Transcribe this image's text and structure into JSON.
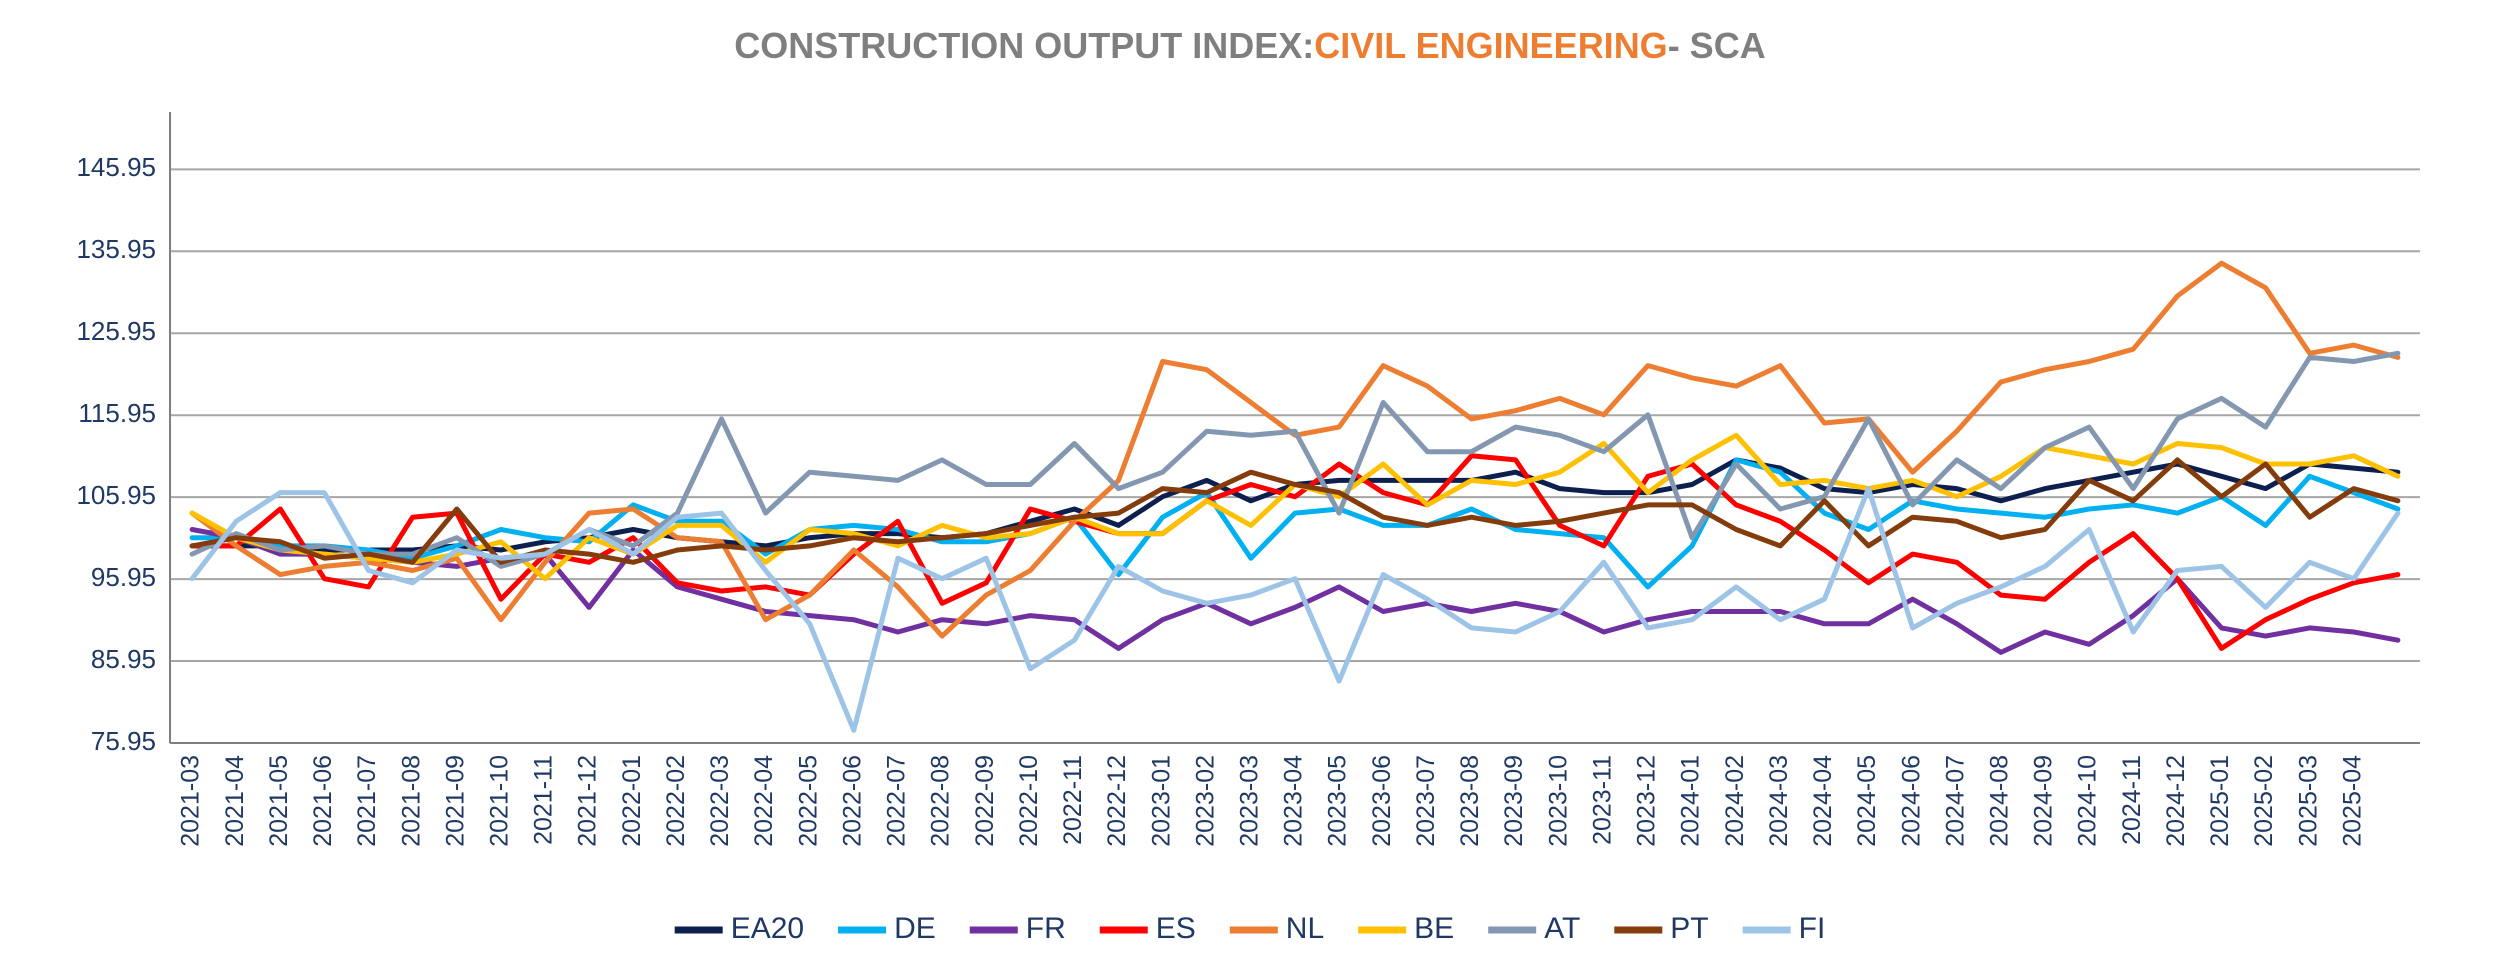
{
  "chart_data": {
    "type": "line",
    "title": [
      "CONSTRUCTION OUTPUT INDEX:",
      "CIVIL ENGINEERING",
      "- SCA"
    ],
    "title_colors": [
      "#7f7f7f",
      "#ed7d31",
      "#7f7f7f"
    ],
    "categories": [
      "2021-03",
      "2021-04",
      "2021-05",
      "2021-06",
      "2021-07",
      "2021-08",
      "2021-09",
      "2021-10",
      "2021-11",
      "2021-12",
      "2022-01",
      "2022-02",
      "2022-03",
      "2022-04",
      "2022-05",
      "2022-06",
      "2022-07",
      "2022-08",
      "2022-09",
      "2022-10",
      "2022-11",
      "2022-12",
      "2023-01",
      "2023-02",
      "2023-03",
      "2023-04",
      "2023-05",
      "2023-06",
      "2023-07",
      "2023-08",
      "2023-09",
      "2023-10",
      "2023-11",
      "2023-12",
      "2024-01",
      "2024-02",
      "2024-03",
      "2024-04",
      "2024-05",
      "2024-06",
      "2024-07",
      "2024-08",
      "2024-09",
      "2024-10",
      "2024-11",
      "2024-12",
      "2025-01",
      "2025-02",
      "2025-03",
      "2025-04",
      null
    ],
    "ylim": [
      75.95,
      152.95
    ],
    "yticks": [
      75.95,
      85.95,
      95.95,
      105.95,
      115.95,
      125.95,
      135.95,
      145.95
    ],
    "grid": true,
    "legend": "bottom",
    "series": [
      {
        "name": "EA20",
        "color": "#0d1f4f",
        "values": [
          100,
          100,
          100,
          99.5,
          99.5,
          99.5,
          100,
          99.5,
          100.5,
          101,
          102,
          101,
          100.5,
          100,
          101,
          101.5,
          101.5,
          101,
          101.5,
          103,
          104.5,
          102.5,
          106,
          108,
          105.5,
          107.5,
          108,
          108,
          108,
          108,
          109,
          107,
          106.5,
          106.5,
          107.5,
          110.5,
          109.5,
          107,
          106.5,
          107.5,
          107,
          105.5,
          107,
          108,
          109,
          110,
          108.5,
          107,
          110,
          109.5,
          109
        ]
      },
      {
        "name": "DE",
        "color": "#00b0f0",
        "values": [
          101,
          101,
          100,
          100,
          99.5,
          98.5,
          100,
          102,
          101,
          100.5,
          105,
          103,
          103,
          99,
          102,
          102.5,
          102,
          100.5,
          100.5,
          101.5,
          103.5,
          96.5,
          103.5,
          106.5,
          98.5,
          104,
          104.5,
          102.5,
          102.5,
          104.5,
          102,
          101.5,
          101,
          95,
          100,
          110.5,
          109,
          104,
          102,
          105.5,
          104.5,
          104,
          103.5,
          104.5,
          105,
          104,
          106,
          102.5,
          108.5,
          106.5,
          104.5
        ]
      },
      {
        "name": "FR",
        "color": "#7030a0",
        "values": [
          102,
          101,
          99,
          99,
          98.5,
          98,
          97.5,
          98.5,
          99,
          92.5,
          99.5,
          95,
          93.5,
          92,
          91.5,
          91,
          89.5,
          91,
          90.5,
          91.5,
          91,
          87.5,
          91,
          93,
          90.5,
          92.5,
          95,
          92,
          93,
          92,
          93,
          92,
          89.5,
          91,
          92,
          92,
          92,
          90.5,
          90.5,
          93.5,
          90.5,
          87,
          89.5,
          88,
          91.5,
          96,
          90,
          89,
          90,
          89.5,
          88.5
        ]
      },
      {
        "name": "ES",
        "color": "#ff0000",
        "values": [
          100,
          100,
          104.5,
          96,
          95,
          103.5,
          104,
          93.5,
          99,
          98,
          101,
          95.5,
          94.5,
          95,
          94,
          99,
          103,
          93,
          95.5,
          104.5,
          103,
          101.5,
          101.5,
          105.5,
          107.5,
          106,
          110,
          106.5,
          105,
          111,
          110.5,
          102.5,
          100,
          108.5,
          110,
          105,
          103,
          99.5,
          95.5,
          99,
          98,
          94,
          93.5,
          98,
          101.5,
          96,
          87.5,
          91,
          93.5,
          95.5,
          96.5
        ]
      },
      {
        "name": "NL",
        "color": "#ed7d31",
        "values": [
          104,
          100,
          96.5,
          97.5,
          98,
          97,
          98.5,
          91,
          98,
          104,
          104.5,
          101,
          100.5,
          91,
          94,
          99.5,
          95,
          89,
          94,
          97,
          103,
          108,
          122.5,
          121.5,
          117.5,
          113.5,
          114.5,
          122,
          119.5,
          115.5,
          116.5,
          118,
          116,
          122,
          120.5,
          119.5,
          122,
          115,
          115.5,
          109,
          114,
          120,
          121.5,
          122.5,
          124,
          130.5,
          134.5,
          131.5,
          123.5,
          124.5,
          123
        ]
      },
      {
        "name": "BE",
        "color": "#ffc000",
        "values": [
          104,
          101,
          99.5,
          99,
          98.5,
          98,
          99,
          100.5,
          96,
          101,
          99,
          102.5,
          102.5,
          98,
          102,
          101.5,
          100,
          102.5,
          101,
          101.5,
          103.5,
          101.5,
          101.5,
          105.5,
          102.5,
          107.5,
          106,
          110,
          105,
          108,
          107.5,
          109,
          112.5,
          106.5,
          110.5,
          113.5,
          107.5,
          108,
          107,
          108,
          106,
          108.5,
          112,
          111,
          110,
          112.5,
          112,
          110,
          110,
          111,
          108.5
        ]
      },
      {
        "name": "AT",
        "color": "#8497b0",
        "values": [
          99,
          101.5,
          99.5,
          100,
          99,
          99,
          101,
          97.5,
          99,
          102,
          100,
          104,
          115.5,
          104,
          109,
          108.5,
          108,
          110.5,
          107.5,
          107.5,
          112.5,
          107,
          109,
          114,
          113.5,
          114,
          104,
          117.5,
          111.5,
          111.5,
          114.5,
          113.5,
          111.5,
          116,
          101,
          110,
          104.5,
          106,
          115.5,
          105,
          110.5,
          107,
          112,
          114.5,
          107,
          115.5,
          118,
          114.5,
          123,
          122.5,
          123.5
        ]
      },
      {
        "name": "PT",
        "color": "#843c0c",
        "values": [
          100,
          101,
          100.5,
          98.5,
          99,
          98,
          104.5,
          98,
          99.5,
          99,
          98,
          99.5,
          100,
          99.5,
          100,
          101,
          100.5,
          101,
          101.5,
          102.5,
          103.5,
          104,
          107,
          106.5,
          109,
          107.5,
          106.5,
          103.5,
          102.5,
          103.5,
          102.5,
          103,
          104,
          105,
          105,
          102,
          100,
          105.5,
          100,
          103.5,
          103,
          101,
          102,
          108,
          105.5,
          110.5,
          106,
          110,
          103.5,
          107,
          105.5
        ]
      },
      {
        "name": "FI",
        "color": "#9dc3e6",
        "values": [
          96,
          103,
          106.5,
          106.5,
          97,
          95.5,
          99.5,
          98.5,
          99,
          102,
          99,
          103.5,
          104,
          97,
          90.5,
          77.5,
          98.5,
          96,
          98.5,
          85,
          88.5,
          97.5,
          94.5,
          93,
          94,
          96,
          83.5,
          96.5,
          93.5,
          90,
          89.5,
          92,
          98,
          90,
          91,
          95,
          91,
          93.5,
          107,
          90,
          93,
          95,
          97.5,
          102,
          89.5,
          97,
          97.5,
          92.5,
          98,
          96,
          104
        ]
      }
    ]
  }
}
